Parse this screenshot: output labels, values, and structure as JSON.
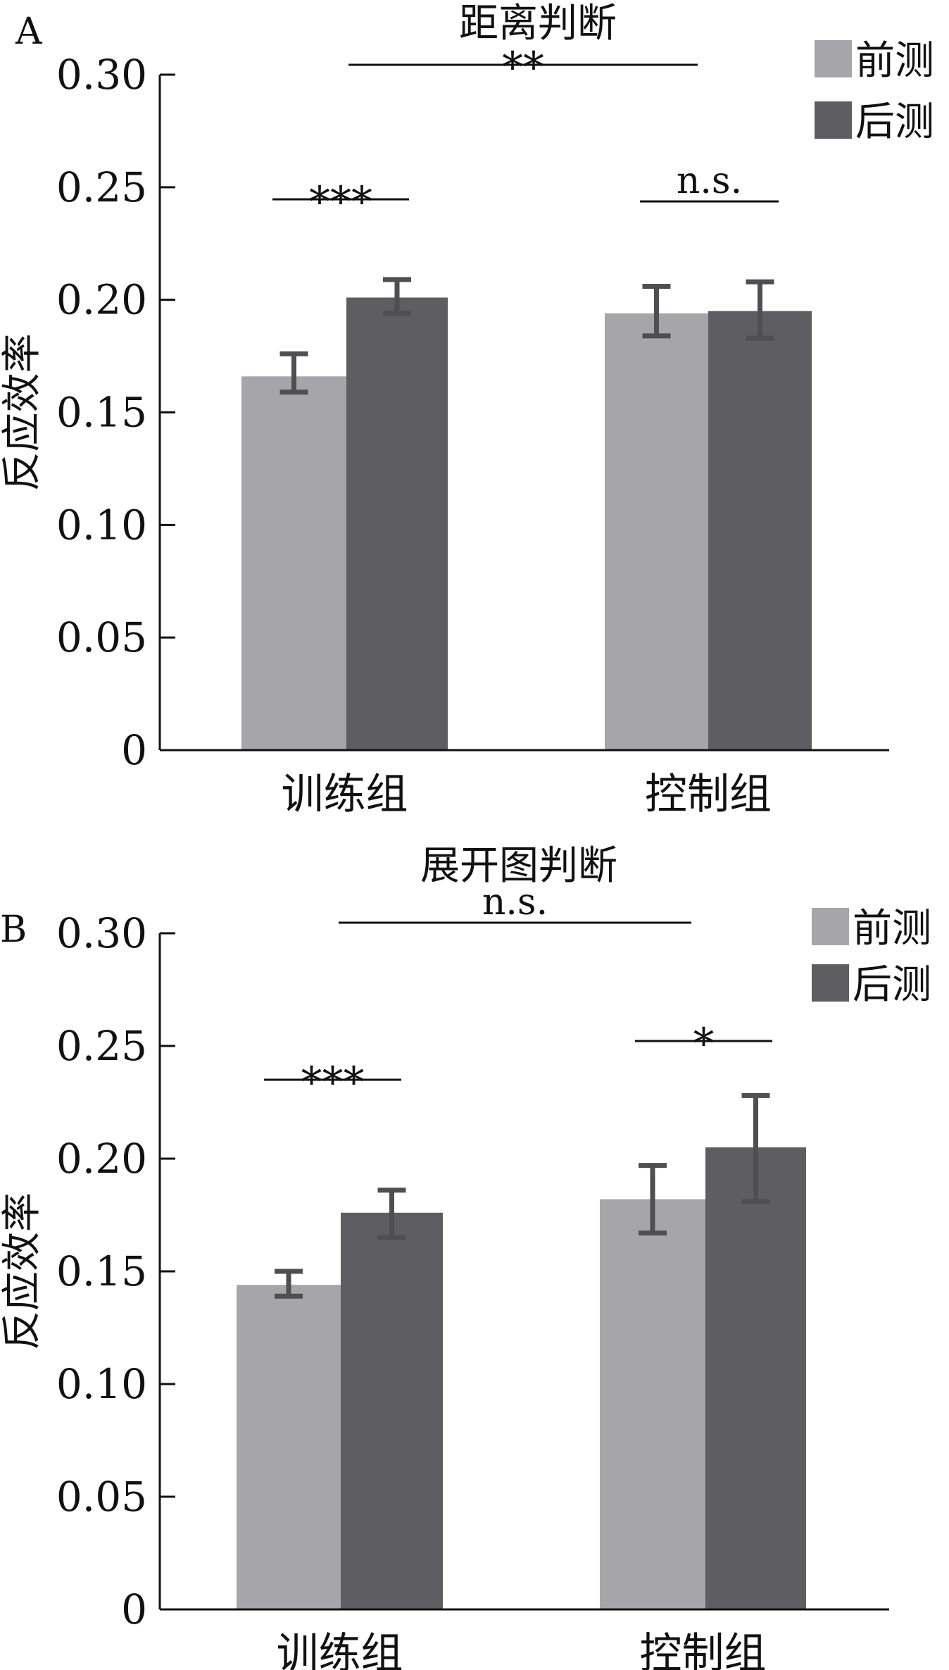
{
  "chart_data": [
    {
      "type": "bar",
      "panel_label": "A",
      "title": "距离判断",
      "ylabel": "反应效率",
      "xlabel": "",
      "ylim": [
        0,
        0.3
      ],
      "yticks": [
        "0",
        "0.05",
        "0.10",
        "0.15",
        "0.20",
        "0.25",
        "0.30"
      ],
      "categories": [
        "训练组",
        "控制组"
      ],
      "series": [
        {
          "name": "前测",
          "color": "#a6a5a9",
          "values": [
            0.166,
            0.194
          ],
          "error_low": [
            0.159,
            0.184
          ],
          "error_high": [
            0.176,
            0.206
          ]
        },
        {
          "name": "后测",
          "color": "#5e5d61",
          "values": [
            0.201,
            0.195
          ],
          "error_low": [
            0.194,
            0.183
          ],
          "error_high": [
            0.209,
            0.208
          ]
        }
      ],
      "significance": [
        {
          "label": "**",
          "between": "训练组 vs 控制组"
        },
        {
          "label": "***",
          "between": "训练组 前测 vs 后测"
        },
        {
          "label": "n.s.",
          "between": "控制组 前测 vs 后测"
        }
      ],
      "legend_position": "top-right",
      "grid": false
    },
    {
      "type": "bar",
      "panel_label": "B",
      "title": "展开图判断",
      "ylabel": "反应效率",
      "xlabel": "",
      "ylim": [
        0,
        0.3
      ],
      "yticks": [
        "0",
        "0.05",
        "0.10",
        "0.15",
        "0.20",
        "0.25",
        "0.30"
      ],
      "categories": [
        "训练组",
        "控制组"
      ],
      "series": [
        {
          "name": "前测",
          "color": "#a6a5a9",
          "values": [
            0.144,
            0.182
          ],
          "error_low": [
            0.139,
            0.167
          ],
          "error_high": [
            0.15,
            0.197
          ]
        },
        {
          "name": "后测",
          "color": "#5e5d61",
          "values": [
            0.176,
            0.205
          ],
          "error_low": [
            0.165,
            0.181
          ],
          "error_high": [
            0.186,
            0.228
          ]
        }
      ],
      "significance": [
        {
          "label": "n.s.",
          "between": "训练组 vs 控制组"
        },
        {
          "label": "***",
          "between": "训练组 前测 vs 后测"
        },
        {
          "label": "*",
          "between": "控制组 前测 vs 后测"
        }
      ],
      "legend_position": "top-right",
      "grid": false
    }
  ],
  "colors": {
    "axis": "#111111",
    "error_bar": "#4f4e52"
  }
}
